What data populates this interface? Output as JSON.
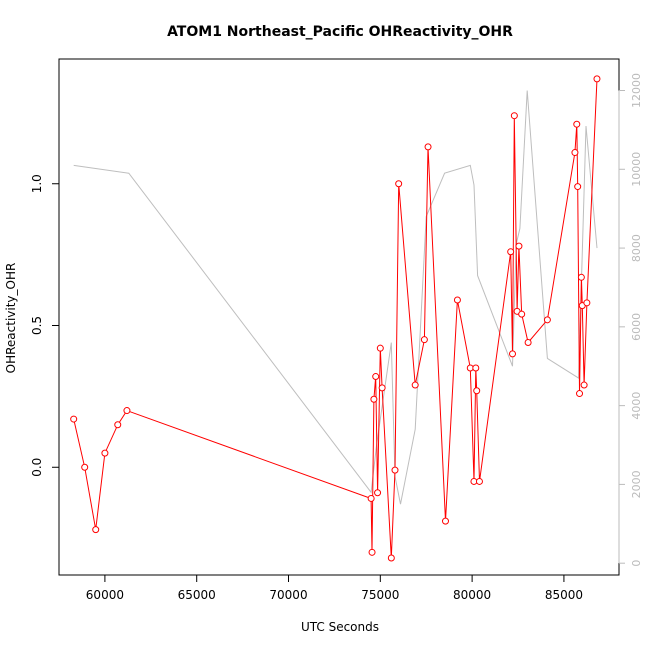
{
  "chart_data": {
    "type": "line",
    "title": "ATOM1 Northeast_Pacific OHReactivity_OHR",
    "xlabel": "UTC Seconds",
    "ylabel": "OHReactivity_OHR",
    "xlim": [
      57500,
      88000
    ],
    "ylim": [
      -0.38,
      1.44
    ],
    "y2lim": [
      -300,
      12800
    ],
    "x_ticks": [
      60000,
      65000,
      70000,
      75000,
      80000,
      85000
    ],
    "x_tick_labels": [
      "60000",
      "65000",
      "70000",
      "75000",
      "80000",
      "85000"
    ],
    "y_ticks": [
      0.0,
      0.5,
      1.0
    ],
    "y_tick_labels": [
      "0.0",
      "0.5",
      "1.0"
    ],
    "y2_ticks": [
      0,
      2000,
      4000,
      6000,
      8000,
      10000,
      12000
    ],
    "y2_tick_labels": [
      "0",
      "2000",
      "4000",
      "6000",
      "8000",
      "10000",
      "12000"
    ],
    "colors": {
      "ohr": "#ff0000",
      "altitude": "#bebebe"
    },
    "series": [
      {
        "axis": "left",
        "style": "line-points",
        "x": [
          58300,
          58900,
          59500,
          60000,
          60700,
          61200,
          74500,
          74550,
          74650,
          74750,
          74850,
          75000,
          75100,
          75600,
          75800,
          76000,
          76900,
          77400,
          77600,
          78550,
          79200,
          79900,
          80100,
          80200,
          80250,
          80400,
          82100,
          82200,
          82300,
          82450,
          82550,
          82700,
          83050,
          84100,
          85600,
          85700,
          85750,
          85850,
          85950,
          86000,
          86100,
          86250,
          86800
        ],
        "y": [
          0.17,
          0.0,
          -0.22,
          0.05,
          0.15,
          0.2,
          -0.11,
          -0.3,
          0.24,
          0.32,
          -0.09,
          0.42,
          0.28,
          -0.32,
          -0.01,
          1.0,
          0.29,
          0.45,
          1.13,
          -0.19,
          0.59,
          0.35,
          -0.05,
          0.35,
          0.27,
          -0.05,
          0.76,
          0.4,
          1.24,
          0.55,
          0.78,
          0.54,
          0.44,
          0.52,
          1.11,
          1.21,
          0.99,
          0.26,
          0.67,
          0.57,
          0.29,
          0.58,
          1.37
        ]
      },
      {
        "axis": "right",
        "style": "line",
        "x": [
          58300,
          61300,
          74500,
          74800,
          75600,
          75800,
          76100,
          76900,
          77500,
          78500,
          79900,
          80100,
          80300,
          82200,
          82400,
          82600,
          83000,
          84100,
          85800,
          86200,
          86800
        ],
        "y": [
          10100,
          9900,
          1800,
          3000,
          5600,
          2200,
          1500,
          3400,
          8800,
          9900,
          10100,
          9600,
          7300,
          5000,
          8100,
          8500,
          12000,
          5200,
          4700,
          11100,
          8000
        ]
      }
    ]
  }
}
